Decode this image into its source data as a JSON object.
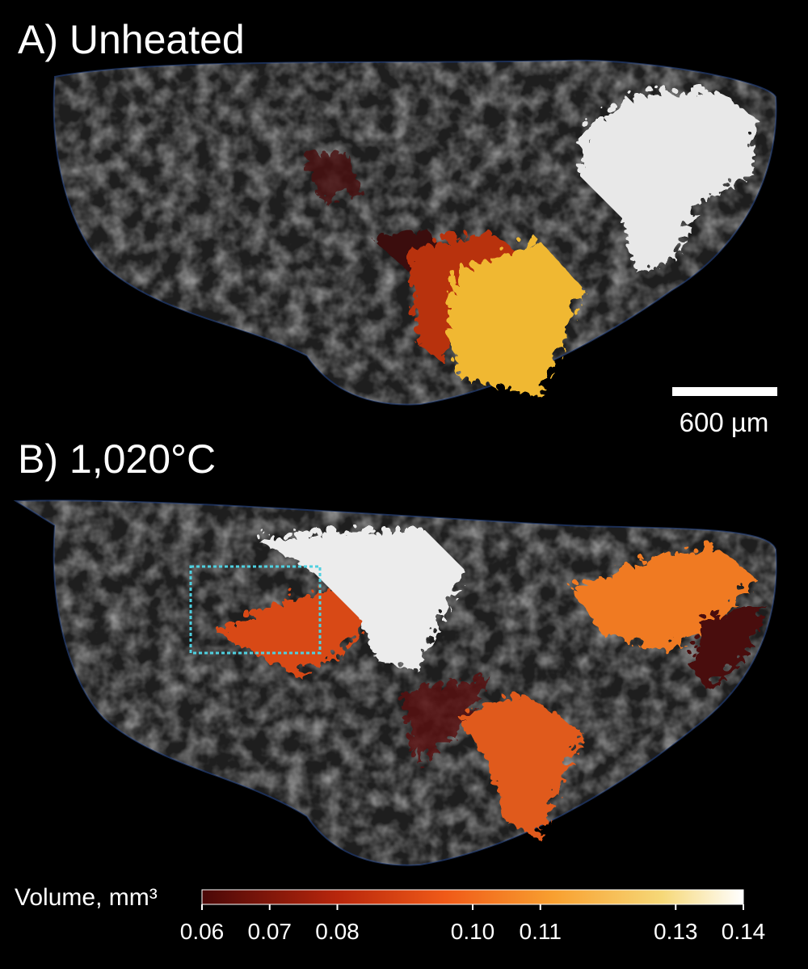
{
  "panels": [
    {
      "label": "A) Unheated"
    },
    {
      "label": "B) 1,020°C"
    }
  ],
  "scale_bar": {
    "label": "600 µm"
  },
  "colorbar": {
    "label": "Volume, mm³",
    "lim": [
      0.06,
      0.14
    ],
    "ticks": [
      0.06,
      0.07,
      0.08,
      {
        "value": 0.1,
        "label": "0.10"
      },
      0.11,
      0.13,
      0.14
    ]
  }
}
